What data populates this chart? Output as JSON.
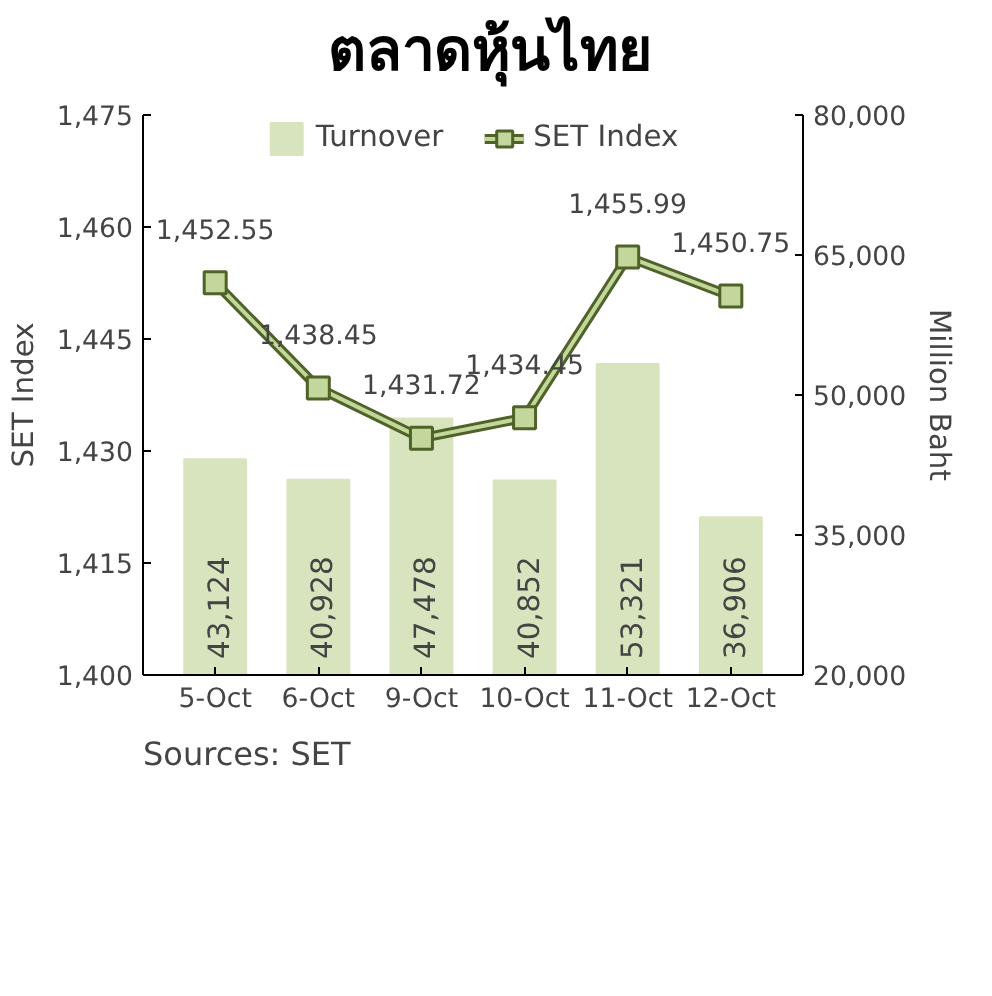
{
  "chart_data": {
    "type": "bar",
    "title": "ตลาดหุ้นไทย",
    "ylabel": "SET Index",
    "y2label": "Million Baht",
    "categories": [
      "5-Oct",
      "6-Oct",
      "9-Oct",
      "10-Oct",
      "11-Oct",
      "12-Oct"
    ],
    "series": [
      {
        "name": "Turnover",
        "axis": "y2",
        "color": "#d7e4bd",
        "values": [
          43124,
          40928,
          47478,
          40852,
          53321,
          36906
        ],
        "value_labels": [
          "43,124",
          "40,928",
          "47,478",
          "40,852",
          "53,321",
          "36,906"
        ]
      },
      {
        "name": "SET Index",
        "type": "line",
        "color": "#4f6228",
        "marker": "square",
        "values": [
          1452.55,
          1438.45,
          1431.72,
          1434.45,
          1455.99,
          1450.75
        ],
        "value_labels": [
          "1,452.55",
          "1,438.45",
          "1,431.72",
          "1,434.45",
          "1,455.99",
          "1,450.75"
        ]
      }
    ],
    "ylim": [
      1400,
      1475
    ],
    "yticks": [
      {
        "value": 1400,
        "label": "1,400"
      },
      {
        "value": 1415,
        "label": "1,415"
      },
      {
        "value": 1430,
        "label": "1,430"
      },
      {
        "value": 1445,
        "label": "1,445"
      },
      {
        "value": 1460,
        "label": "1,460"
      },
      {
        "value": 1475,
        "label": "1,475"
      }
    ],
    "y2lim": [
      20000,
      80000
    ],
    "y2ticks": [
      {
        "value": 20000,
        "label": "20,000"
      },
      {
        "value": 35000,
        "label": "35,000"
      },
      {
        "value": 50000,
        "label": "50,000"
      },
      {
        "value": 65000,
        "label": "65,000"
      },
      {
        "value": 80000,
        "label": "80,000"
      }
    ],
    "legend": "top",
    "grid": false,
    "annotations": [
      "Sources: SET"
    ]
  }
}
